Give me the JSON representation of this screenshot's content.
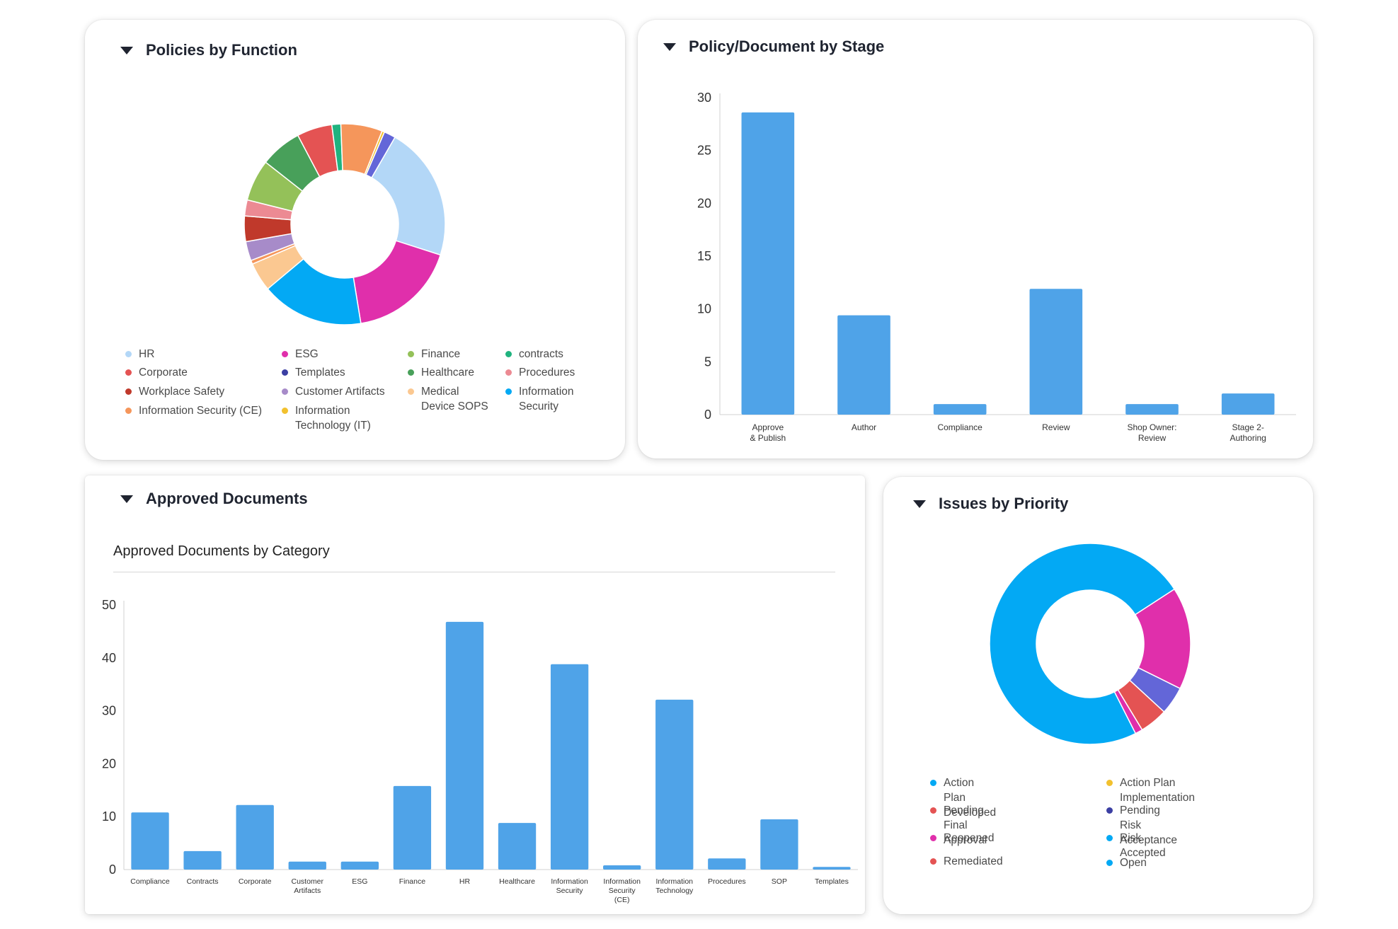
{
  "colors": {
    "bar": "#4fa3e8",
    "axis": "#d0d0d0",
    "tick": "#333333"
  },
  "cards": {
    "policies_by_function": {
      "title": "Policies by Function",
      "legend": [
        {
          "label": "HR",
          "color": "#b3d7f7"
        },
        {
          "label": "Corporate",
          "color": "#e45353"
        },
        {
          "label": "Workplace Safety",
          "color": "#c0392b"
        },
        {
          "label": "Information Security (CE)",
          "color": "#f5965b"
        },
        {
          "label": "ESG",
          "color": "#e02fab"
        },
        {
          "label": "Templates",
          "color": "#3b3fa3"
        },
        {
          "label": "Customer Artifacts",
          "color": "#a78bc9"
        },
        {
          "label": "Information Technology (IT)",
          "color": "#f2c12e"
        },
        {
          "label": "Finance",
          "color": "#94c159"
        },
        {
          "label": "Healthcare",
          "color": "#48a05a"
        },
        {
          "label": "Medical Device SOPS",
          "color": "#fbc891"
        },
        {
          "label": "contracts",
          "color": "#20b37f"
        },
        {
          "label": "Procedures",
          "color": "#ec8a93"
        },
        {
          "label": "Information Security",
          "color": "#03a9f4"
        }
      ]
    },
    "policy_by_stage": {
      "title": "Policy/Document by Stage"
    },
    "approved_documents": {
      "title": "Approved Documents",
      "subtitle": "Approved Documents by Category"
    },
    "issues_by_priority": {
      "title": "Issues by Priority",
      "legend": [
        {
          "label": "Action Plan Developed",
          "color": "#03a9f4"
        },
        {
          "label": "Action Plan Implementation",
          "color": "#f2c12e"
        },
        {
          "label": "Pending Final Approval",
          "color": "#e45353"
        },
        {
          "label": "Pending Risk Acceptance",
          "color": "#3b3fa3"
        },
        {
          "label": "Reopened",
          "color": "#e02fab"
        },
        {
          "label": "Risk Accepted",
          "color": "#03a9f4"
        },
        {
          "label": "Remediated",
          "color": "#e45353"
        },
        {
          "label": "Open",
          "color": "#03a9f4"
        }
      ]
    }
  },
  "chart_data": [
    {
      "type": "pie",
      "title": "Policies by Function",
      "slices": [
        {
          "label": "HR",
          "value": 21,
          "color": "#b3d7f7"
        },
        {
          "label": "ESG",
          "value": 17,
          "color": "#e02fab"
        },
        {
          "label": "Information Security",
          "value": 16,
          "color": "#03a9f4"
        },
        {
          "label": "Medical Device SOPS",
          "value": 4.5,
          "color": "#fbc891"
        },
        {
          "label": "Information Security (CE)",
          "value": 0.6,
          "color": "#f5965b"
        },
        {
          "label": "Customer Artifacts",
          "value": 3,
          "color": "#a78bc9"
        },
        {
          "label": "Workplace Safety",
          "value": 4,
          "color": "#c0392b"
        },
        {
          "label": "Procedures",
          "value": 2.5,
          "color": "#ec8a93"
        },
        {
          "label": "Finance",
          "value": 6.5,
          "color": "#94c159"
        },
        {
          "label": "Healthcare",
          "value": 6.5,
          "color": "#48a05a"
        },
        {
          "label": "Corporate",
          "value": 5.5,
          "color": "#e45353"
        },
        {
          "label": "contracts",
          "value": 1.4,
          "color": "#20b37f"
        },
        {
          "label": "Information Security (CE)",
          "value": 6.5,
          "color": "#f5965b"
        },
        {
          "label": "Information Technology (IT)",
          "value": 0.4,
          "color": "#f2c12e"
        },
        {
          "label": "Templates",
          "value": 1.8,
          "color": "#6366d8"
        }
      ]
    },
    {
      "type": "bar",
      "title": "Policy/Document by Stage",
      "categories": [
        "Approve & Publish",
        "Author",
        "Compliance",
        "Review",
        "Shop Owner: Review",
        "Stage 2- Authoring"
      ],
      "values": [
        28.6,
        9.4,
        1.0,
        11.9,
        1.0,
        2.0
      ],
      "ylim": [
        0,
        30
      ],
      "yticks": [
        0,
        5,
        10,
        15,
        20,
        25,
        30
      ]
    },
    {
      "type": "bar",
      "title": "Approved Documents by Category",
      "categories": [
        "Compliance",
        "Contracts",
        "Corporate",
        "Customer Artifacts",
        "ESG",
        "Finance",
        "HR",
        "Healthcare",
        "Information Security",
        "Information Security (CE)",
        "Information Technology",
        "Procedures",
        "SOP",
        "Templates"
      ],
      "values": [
        10.8,
        3.5,
        12.2,
        1.5,
        1.5,
        15.8,
        46.8,
        8.8,
        38.8,
        0.8,
        32.1,
        2.1,
        9.5,
        0.5
      ],
      "ylim": [
        0,
        50
      ],
      "yticks": [
        0,
        10,
        20,
        30,
        40,
        50
      ]
    },
    {
      "type": "pie",
      "title": "Issues by Priority",
      "slices": [
        {
          "label": "Reopened",
          "value": 16.5,
          "color": "#e02fab"
        },
        {
          "label": "Pending Risk Acceptance",
          "value": 4.5,
          "color": "#6366d8"
        },
        {
          "label": "Pending Final Approval",
          "value": 4.5,
          "color": "#e45353"
        },
        {
          "label": "Reopened",
          "value": 1.2,
          "color": "#e02fab"
        },
        {
          "label": "Open",
          "value": 73.3,
          "color": "#03a9f4"
        }
      ]
    }
  ]
}
